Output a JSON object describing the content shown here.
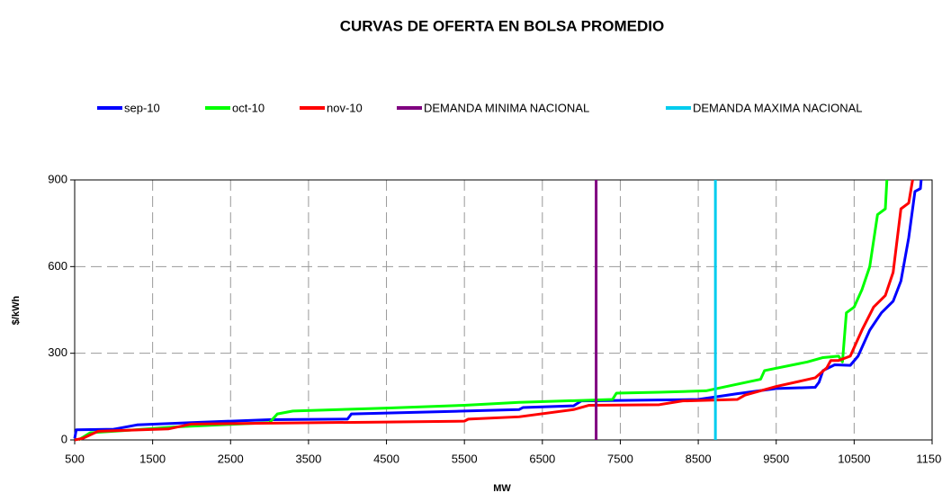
{
  "chart_data": {
    "type": "line",
    "title": "CURVAS DE OFERTA EN BOLSA PROMEDIO",
    "xlabel": "MW",
    "ylabel": "$/kWh",
    "xlim": [
      500,
      11500
    ],
    "xticks": [
      500,
      1500,
      2500,
      3500,
      4500,
      5500,
      6500,
      7500,
      8500,
      9500,
      10500,
      11500
    ],
    "ylim": [
      0,
      900
    ],
    "yticks": [
      0,
      300,
      600,
      900
    ],
    "grid": true,
    "legend": "top",
    "series": [
      {
        "name": "sep-10",
        "color": "#0000ff",
        "x": [
          500,
          520,
          1000,
          1300,
          2000,
          3000,
          4000,
          4050,
          5500,
          6200,
          6250,
          6900,
          7000,
          8500,
          9000,
          9500,
          10000,
          10050,
          10100,
          10250,
          10450,
          10550,
          10700,
          10850,
          11000,
          11100,
          11200,
          11280,
          11350,
          11360
        ],
        "values": [
          5,
          35,
          37,
          52,
          60,
          70,
          72,
          90,
          100,
          105,
          112,
          118,
          135,
          140,
          160,
          178,
          182,
          200,
          240,
          260,
          258,
          290,
          380,
          440,
          480,
          550,
          700,
          860,
          870,
          900
        ]
      },
      {
        "name": "oct-10",
        "color": "#00ff00",
        "x": [
          550,
          700,
          1000,
          1800,
          3000,
          3100,
          3300,
          4500,
          5500,
          6200,
          7400,
          7450,
          8000,
          8600,
          9300,
          9350,
          9900,
          10100,
          10300,
          10350,
          10400,
          10500,
          10600,
          10700,
          10800,
          10900,
          10920
        ],
        "values": [
          0,
          25,
          30,
          45,
          60,
          90,
          100,
          110,
          120,
          130,
          140,
          162,
          165,
          170,
          210,
          240,
          270,
          285,
          290,
          270,
          440,
          460,
          520,
          600,
          780,
          800,
          900
        ]
      },
      {
        "name": "nov-10",
        "color": "#ff0000",
        "x": [
          500,
          600,
          800,
          1700,
          2000,
          3000,
          4500,
          5500,
          5550,
          6200,
          6900,
          7100,
          8000,
          8300,
          9000,
          9100,
          9500,
          10000,
          10150,
          10200,
          10300,
          10450,
          10600,
          10750,
          10900,
          11000,
          11100,
          11200,
          11250
        ],
        "values": [
          0,
          5,
          30,
          38,
          55,
          58,
          62,
          65,
          72,
          80,
          105,
          120,
          122,
          135,
          140,
          155,
          185,
          215,
          250,
          275,
          275,
          290,
          380,
          460,
          500,
          580,
          800,
          820,
          900
        ]
      },
      {
        "name": "DEMANDA MINIMA NACIONAL",
        "color": "#800080",
        "x": [
          7190,
          7190
        ],
        "values": [
          0,
          900
        ]
      },
      {
        "name": "DEMANDA MAXIMA NACIONAL",
        "color": "#00ccee",
        "x": [
          8720,
          8720
        ],
        "values": [
          0,
          900
        ]
      }
    ]
  }
}
